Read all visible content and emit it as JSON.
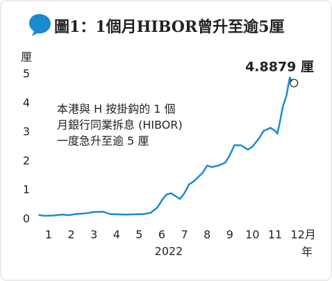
{
  "chart_data": {
    "type": "line",
    "title": "圖1：1個月HIBOR曾升至逾5厘",
    "ylabel": "厘",
    "categories": [
      "1",
      "2",
      "3",
      "4",
      "5",
      "6",
      "7",
      "8",
      "9",
      "10",
      "11",
      "12月"
    ],
    "year": "2022",
    "year_unit": "年",
    "annotation": [
      "本港與 H 按掛鈎的 1 個",
      "月銀行同業拆息 (HIBOR)",
      "一度急升至逾 5 厘"
    ],
    "peak_label": "4.8879 厘",
    "series": [
      {
        "name": "1個月HIBOR",
        "color": "#1a8ad0",
        "x": [
          0.55,
          0.8,
          1.2,
          1.6,
          1.9,
          2.2,
          2.6,
          3.0,
          3.4,
          3.7,
          4.0,
          4.4,
          4.8,
          5.2,
          5.5,
          5.8,
          6.0,
          6.2,
          6.4,
          6.6,
          6.8,
          7.0,
          7.2,
          7.4,
          7.6,
          7.8,
          8.0,
          8.2,
          8.5,
          8.8,
          9.0,
          9.2,
          9.5,
          9.8,
          10.0,
          10.3,
          10.5,
          10.8,
          11.0,
          11.1,
          11.2,
          11.35,
          11.5,
          11.65,
          11.75
        ],
        "values": [
          0.15,
          0.12,
          0.13,
          0.16,
          0.14,
          0.18,
          0.2,
          0.25,
          0.26,
          0.18,
          0.17,
          0.16,
          0.17,
          0.18,
          0.22,
          0.4,
          0.65,
          0.85,
          0.9,
          0.8,
          0.7,
          0.9,
          1.2,
          1.3,
          1.45,
          1.6,
          1.85,
          1.8,
          1.85,
          1.95,
          2.2,
          2.55,
          2.55,
          2.4,
          2.5,
          2.8,
          3.05,
          3.15,
          3.05,
          2.95,
          3.3,
          3.9,
          4.25,
          4.8879,
          4.75
        ]
      }
    ],
    "peak_index": 43,
    "xlim": [
      0.2,
      12.3
    ],
    "ylim": [
      0,
      5.2
    ],
    "yticks": [
      0,
      1,
      2,
      3,
      4,
      5
    ]
  }
}
